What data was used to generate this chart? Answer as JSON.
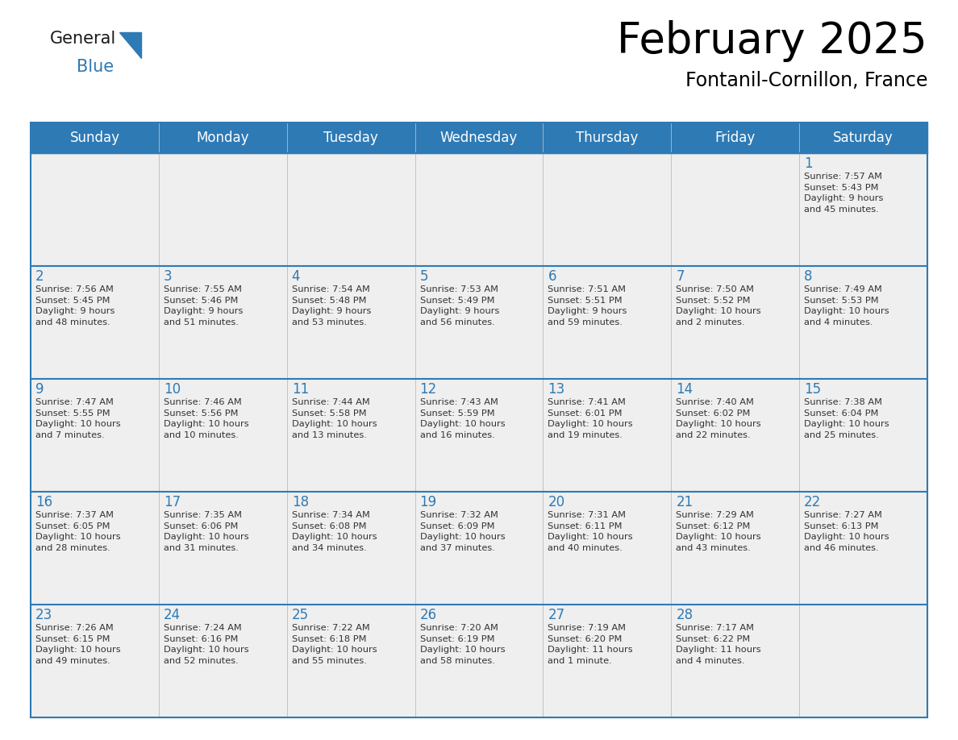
{
  "title": "February 2025",
  "subtitle": "Fontanil-Cornillon, France",
  "header_color": "#2E7AB5",
  "header_text_color": "#FFFFFF",
  "cell_bg_odd": "#EFEFEF",
  "cell_bg_even": "#EFEFEF",
  "day_number_color": "#2E7AB5",
  "info_text_color": "#333333",
  "border_color": "#2E7AB5",
  "line_color": "#2E7AB5",
  "days_of_week": [
    "Sunday",
    "Monday",
    "Tuesday",
    "Wednesday",
    "Thursday",
    "Friday",
    "Saturday"
  ],
  "weeks": [
    [
      {
        "day": "",
        "info": ""
      },
      {
        "day": "",
        "info": ""
      },
      {
        "day": "",
        "info": ""
      },
      {
        "day": "",
        "info": ""
      },
      {
        "day": "",
        "info": ""
      },
      {
        "day": "",
        "info": ""
      },
      {
        "day": "1",
        "info": "Sunrise: 7:57 AM\nSunset: 5:43 PM\nDaylight: 9 hours\nand 45 minutes."
      }
    ],
    [
      {
        "day": "2",
        "info": "Sunrise: 7:56 AM\nSunset: 5:45 PM\nDaylight: 9 hours\nand 48 minutes."
      },
      {
        "day": "3",
        "info": "Sunrise: 7:55 AM\nSunset: 5:46 PM\nDaylight: 9 hours\nand 51 minutes."
      },
      {
        "day": "4",
        "info": "Sunrise: 7:54 AM\nSunset: 5:48 PM\nDaylight: 9 hours\nand 53 minutes."
      },
      {
        "day": "5",
        "info": "Sunrise: 7:53 AM\nSunset: 5:49 PM\nDaylight: 9 hours\nand 56 minutes."
      },
      {
        "day": "6",
        "info": "Sunrise: 7:51 AM\nSunset: 5:51 PM\nDaylight: 9 hours\nand 59 minutes."
      },
      {
        "day": "7",
        "info": "Sunrise: 7:50 AM\nSunset: 5:52 PM\nDaylight: 10 hours\nand 2 minutes."
      },
      {
        "day": "8",
        "info": "Sunrise: 7:49 AM\nSunset: 5:53 PM\nDaylight: 10 hours\nand 4 minutes."
      }
    ],
    [
      {
        "day": "9",
        "info": "Sunrise: 7:47 AM\nSunset: 5:55 PM\nDaylight: 10 hours\nand 7 minutes."
      },
      {
        "day": "10",
        "info": "Sunrise: 7:46 AM\nSunset: 5:56 PM\nDaylight: 10 hours\nand 10 minutes."
      },
      {
        "day": "11",
        "info": "Sunrise: 7:44 AM\nSunset: 5:58 PM\nDaylight: 10 hours\nand 13 minutes."
      },
      {
        "day": "12",
        "info": "Sunrise: 7:43 AM\nSunset: 5:59 PM\nDaylight: 10 hours\nand 16 minutes."
      },
      {
        "day": "13",
        "info": "Sunrise: 7:41 AM\nSunset: 6:01 PM\nDaylight: 10 hours\nand 19 minutes."
      },
      {
        "day": "14",
        "info": "Sunrise: 7:40 AM\nSunset: 6:02 PM\nDaylight: 10 hours\nand 22 minutes."
      },
      {
        "day": "15",
        "info": "Sunrise: 7:38 AM\nSunset: 6:04 PM\nDaylight: 10 hours\nand 25 minutes."
      }
    ],
    [
      {
        "day": "16",
        "info": "Sunrise: 7:37 AM\nSunset: 6:05 PM\nDaylight: 10 hours\nand 28 minutes."
      },
      {
        "day": "17",
        "info": "Sunrise: 7:35 AM\nSunset: 6:06 PM\nDaylight: 10 hours\nand 31 minutes."
      },
      {
        "day": "18",
        "info": "Sunrise: 7:34 AM\nSunset: 6:08 PM\nDaylight: 10 hours\nand 34 minutes."
      },
      {
        "day": "19",
        "info": "Sunrise: 7:32 AM\nSunset: 6:09 PM\nDaylight: 10 hours\nand 37 minutes."
      },
      {
        "day": "20",
        "info": "Sunrise: 7:31 AM\nSunset: 6:11 PM\nDaylight: 10 hours\nand 40 minutes."
      },
      {
        "day": "21",
        "info": "Sunrise: 7:29 AM\nSunset: 6:12 PM\nDaylight: 10 hours\nand 43 minutes."
      },
      {
        "day": "22",
        "info": "Sunrise: 7:27 AM\nSunset: 6:13 PM\nDaylight: 10 hours\nand 46 minutes."
      }
    ],
    [
      {
        "day": "23",
        "info": "Sunrise: 7:26 AM\nSunset: 6:15 PM\nDaylight: 10 hours\nand 49 minutes."
      },
      {
        "day": "24",
        "info": "Sunrise: 7:24 AM\nSunset: 6:16 PM\nDaylight: 10 hours\nand 52 minutes."
      },
      {
        "day": "25",
        "info": "Sunrise: 7:22 AM\nSunset: 6:18 PM\nDaylight: 10 hours\nand 55 minutes."
      },
      {
        "day": "26",
        "info": "Sunrise: 7:20 AM\nSunset: 6:19 PM\nDaylight: 10 hours\nand 58 minutes."
      },
      {
        "day": "27",
        "info": "Sunrise: 7:19 AM\nSunset: 6:20 PM\nDaylight: 11 hours\nand 1 minute."
      },
      {
        "day": "28",
        "info": "Sunrise: 7:17 AM\nSunset: 6:22 PM\nDaylight: 11 hours\nand 4 minutes."
      },
      {
        "day": "",
        "info": ""
      }
    ]
  ]
}
